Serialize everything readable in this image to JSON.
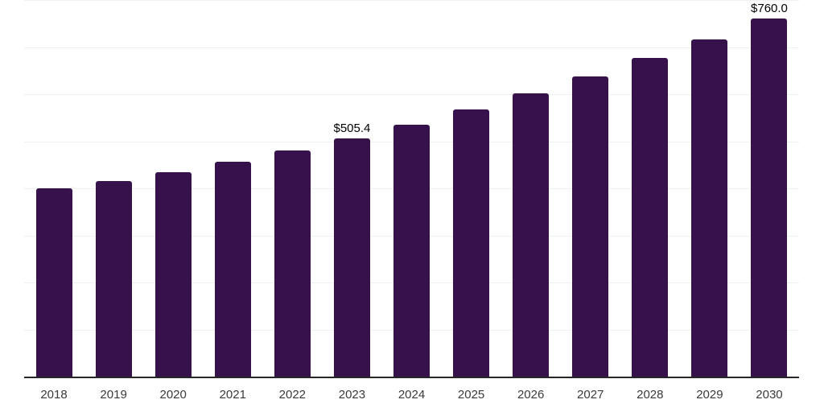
{
  "chart_data": {
    "type": "bar",
    "title": "",
    "xlabel": "",
    "ylabel": "",
    "categories": [
      "2018",
      "2019",
      "2020",
      "2021",
      "2022",
      "2023",
      "2024",
      "2025",
      "2026",
      "2027",
      "2028",
      "2029",
      "2030"
    ],
    "values": [
      400.0,
      415.4,
      434.1,
      456.2,
      479.9,
      505.4,
      535.7,
      567.9,
      602.0,
      638.1,
      676.4,
      717.0,
      760.0
    ],
    "value_labels": {
      "2023": "$505.4",
      "2030": "$760.0"
    },
    "currency_prefix": "$",
    "ylim": [
      0,
      800
    ],
    "grid_interval": 100,
    "grid": "horizontal",
    "legend": "none",
    "y_axis_tick_labels": "none"
  },
  "colors": {
    "bar": "#36114B",
    "gridline": "#f0f0f0",
    "axis": "#262626",
    "value_label": "#000000",
    "tick_label": "#3a3a3a",
    "background": "#ffffff"
  }
}
